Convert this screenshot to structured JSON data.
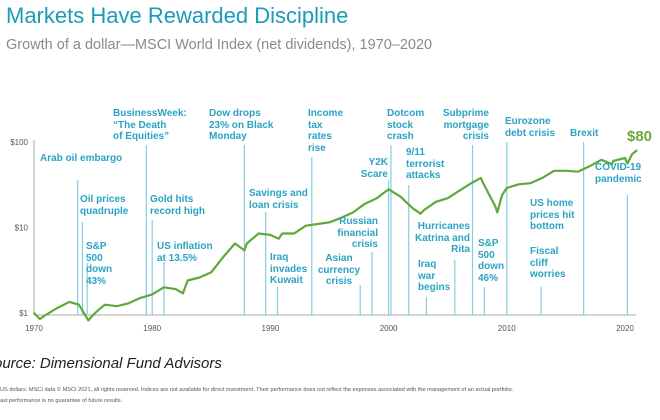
{
  "header": {
    "title": "Markets Have Rewarded Discipline",
    "subtitle": "Growth of a dollar—MSCI World Index (net dividends), 1970–2020"
  },
  "chart_data": {
    "type": "line",
    "title": "Markets Have Rewarded Discipline",
    "xlabel": "",
    "ylabel": "",
    "yscale": "log",
    "ylim": [
      1,
      100
    ],
    "xlim": [
      1970,
      2021
    ],
    "y_ticks": [
      {
        "v": 1,
        "label": "$1"
      },
      {
        "v": 10,
        "label": "$10"
      },
      {
        "v": 100,
        "label": "$100"
      }
    ],
    "x_ticks": [
      {
        "v": 1970,
        "label": "1970"
      },
      {
        "v": 1980,
        "label": "1980"
      },
      {
        "v": 1990,
        "label": "1990"
      },
      {
        "v": 2000,
        "label": "2000"
      },
      {
        "v": 2010,
        "label": "2010"
      },
      {
        "v": 2020,
        "label": "2020"
      }
    ],
    "series": [
      {
        "name": "MSCI World Index (net dividends)",
        "color": "#5fa83a",
        "x": [
          1970,
          1970.5,
          1971,
          1972,
          1973,
          1973.8,
          1974.6,
          1975,
          1975.5,
          1976,
          1977,
          1978,
          1979,
          1980,
          1981,
          1982,
          1982.6,
          1983,
          1984,
          1985,
          1986,
          1987,
          1987.8,
          1988,
          1989,
          1990,
          1990.7,
          1991,
          1992,
          1993,
          1994,
          1995,
          1996,
          1997,
          1998,
          1999,
          2000,
          2001,
          2002,
          2002.7,
          2003,
          2004,
          2005,
          2006,
          2007,
          2007.8,
          2008,
          2009,
          2009.2,
          2009.6,
          2010,
          2011,
          2012,
          2013,
          2014,
          2015,
          2016,
          2017,
          2018,
          2018.9,
          2019,
          2020,
          2020.2,
          2020.6,
          2021
        ],
        "values": [
          1.0,
          0.85,
          0.95,
          1.15,
          1.35,
          1.25,
          0.82,
          0.95,
          1.1,
          1.25,
          1.2,
          1.3,
          1.5,
          1.65,
          2.0,
          1.9,
          1.7,
          2.4,
          2.6,
          3.0,
          4.5,
          6.5,
          5.4,
          6.5,
          8.5,
          8.2,
          7.4,
          8.5,
          8.5,
          10.5,
          11,
          11.5,
          13,
          15,
          19,
          22,
          28,
          23,
          17,
          14.5,
          16,
          20,
          22,
          27,
          33,
          38,
          33,
          18,
          15,
          24,
          29,
          32,
          33,
          38,
          46,
          46,
          45,
          52,
          62,
          55,
          60,
          65,
          56,
          72,
          80
        ]
      }
    ],
    "end_label": "$80",
    "annotations": [
      {
        "year": 1973.7,
        "text": "Arab oil embargo"
      },
      {
        "year": 1974.1,
        "text": "Oil prices quadruple"
      },
      {
        "year": 1974.5,
        "text": "S&P 500 down 43%"
      },
      {
        "year": 1979.5,
        "text": "BusinessWeek: “The Death of Equities”"
      },
      {
        "year": 1980,
        "text": "Gold hits record high"
      },
      {
        "year": 1981,
        "text": "US inflation at 13.5%"
      },
      {
        "year": 1987.8,
        "text": "Dow drops 23% on Black Monday"
      },
      {
        "year": 1989.6,
        "text": "Savings and loan crisis"
      },
      {
        "year": 1990.6,
        "text": "Iraq invades Kuwait"
      },
      {
        "year": 1993.5,
        "text": "Income tax rates rise"
      },
      {
        "year": 1997.6,
        "text": "Asian currency crisis"
      },
      {
        "year": 1998.6,
        "text": "Russian financial crisis"
      },
      {
        "year": 2000,
        "text": "Y2K Scare"
      },
      {
        "year": 2000.2,
        "text": "Dotcom stock crash"
      },
      {
        "year": 2001.7,
        "text": "9/11 terrorist attacks"
      },
      {
        "year": 2005.6,
        "text": "Hurricanes Katrina and Rita"
      },
      {
        "year": 2003.2,
        "text": "Iraq war begins"
      },
      {
        "year": 2007.1,
        "text": "Subprime mortgage crisis"
      },
      {
        "year": 2008.1,
        "text": "S&P 500 down 46%"
      },
      {
        "year": 2010,
        "text": "Eurozone debt crisis"
      },
      {
        "year": 2012,
        "text": "US home prices hit bottom"
      },
      {
        "year": 2012.9,
        "text": "Fiscal cliff worries"
      },
      {
        "year": 2016.5,
        "text": "Brexit"
      },
      {
        "year": 2020.2,
        "text": "COVID-19 pandemic"
      }
    ]
  },
  "footer": {
    "source": "ource: Dimensional Fund Advisors",
    "note_1": "US dollars. MSCI data © MSCI 2021, all rights reserved. Indices are not available for direct investment. Their performance does not reflect the expenses associated with the management of an actual portfolio.",
    "note_2": "ast performance is no guarantee of future results."
  }
}
